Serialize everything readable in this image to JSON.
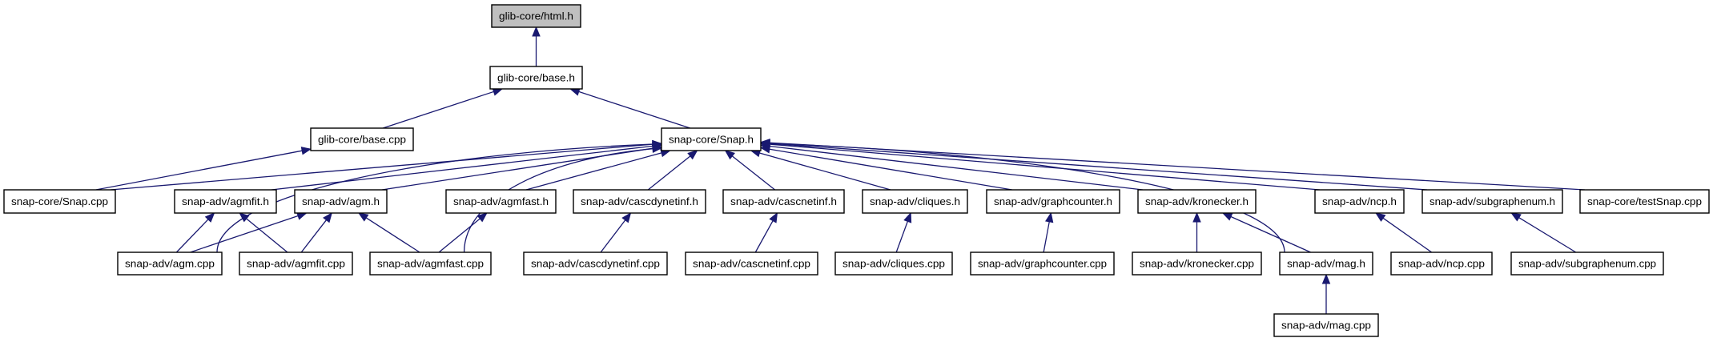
{
  "diagram": {
    "type": "include-dependency-graph",
    "colors": {
      "edge": "#191970",
      "root_fill": "#bfbfbf",
      "node_fill": "#ffffff",
      "border": "#000000"
    },
    "nodes": [
      {
        "id": "html_h",
        "label": "glib-core/html.h",
        "root": true
      },
      {
        "id": "base_h",
        "label": "glib-core/base.h"
      },
      {
        "id": "base_cpp",
        "label": "glib-core/base.cpp"
      },
      {
        "id": "snap_h",
        "label": "snap-core/Snap.h"
      },
      {
        "id": "snap_cpp",
        "label": "snap-core/Snap.cpp"
      },
      {
        "id": "agmfit_h",
        "label": "snap-adv/agmfit.h"
      },
      {
        "id": "agm_h",
        "label": "snap-adv/agm.h"
      },
      {
        "id": "agmfast_h",
        "label": "snap-adv/agmfast.h"
      },
      {
        "id": "cascdynetinf_h",
        "label": "snap-adv/cascdynetinf.h"
      },
      {
        "id": "cascnetinf_h",
        "label": "snap-adv/cascnetinf.h"
      },
      {
        "id": "cliques_h",
        "label": "snap-adv/cliques.h"
      },
      {
        "id": "graphcounter_h",
        "label": "snap-adv/graphcounter.h"
      },
      {
        "id": "kronecker_h",
        "label": "snap-adv/kronecker.h"
      },
      {
        "id": "ncp_h",
        "label": "snap-adv/ncp.h"
      },
      {
        "id": "subgraphenum_h",
        "label": "snap-adv/subgraphenum.h"
      },
      {
        "id": "testsnap_cpp",
        "label": "snap-core/testSnap.cpp"
      },
      {
        "id": "agm_cpp",
        "label": "snap-adv/agm.cpp"
      },
      {
        "id": "agmfit_cpp",
        "label": "snap-adv/agmfit.cpp"
      },
      {
        "id": "agmfast_cpp",
        "label": "snap-adv/agmfast.cpp"
      },
      {
        "id": "cascdynetinf_cpp",
        "label": "snap-adv/cascdynetinf.cpp"
      },
      {
        "id": "cascnetinf_cpp",
        "label": "snap-adv/cascnetinf.cpp"
      },
      {
        "id": "cliques_cpp",
        "label": "snap-adv/cliques.cpp"
      },
      {
        "id": "graphcounter_cpp",
        "label": "snap-adv/graphcounter.cpp"
      },
      {
        "id": "kronecker_cpp",
        "label": "snap-adv/kronecker.cpp"
      },
      {
        "id": "mag_h",
        "label": "snap-adv/mag.h"
      },
      {
        "id": "ncp_cpp",
        "label": "snap-adv/ncp.cpp"
      },
      {
        "id": "subgraphenum_cpp",
        "label": "snap-adv/subgraphenum.cpp"
      },
      {
        "id": "mag_cpp",
        "label": "snap-adv/mag.cpp"
      }
    ],
    "edges": [
      {
        "from": "base_h",
        "to": "html_h"
      },
      {
        "from": "base_cpp",
        "to": "base_h"
      },
      {
        "from": "snap_h",
        "to": "base_h"
      },
      {
        "from": "snap_cpp",
        "to": "base_cpp"
      },
      {
        "from": "snap_cpp",
        "to": "snap_h"
      },
      {
        "from": "agmfit_h",
        "to": "snap_h"
      },
      {
        "from": "agm_h",
        "to": "snap_h"
      },
      {
        "from": "agmfast_h",
        "to": "snap_h"
      },
      {
        "from": "cascdynetinf_h",
        "to": "snap_h"
      },
      {
        "from": "cascnetinf_h",
        "to": "snap_h"
      },
      {
        "from": "cliques_h",
        "to": "snap_h"
      },
      {
        "from": "graphcounter_h",
        "to": "snap_h"
      },
      {
        "from": "kronecker_h",
        "to": "snap_h"
      },
      {
        "from": "ncp_h",
        "to": "snap_h"
      },
      {
        "from": "subgraphenum_h",
        "to": "snap_h"
      },
      {
        "from": "testsnap_cpp",
        "to": "snap_h"
      },
      {
        "from": "agm_cpp",
        "to": "snap_h",
        "curved": true
      },
      {
        "from": "agmfast_cpp",
        "to": "snap_h",
        "curved": true
      },
      {
        "from": "mag_h",
        "to": "snap_h",
        "curved": true
      },
      {
        "from": "agm_cpp",
        "to": "agmfit_h"
      },
      {
        "from": "agm_cpp",
        "to": "agm_h"
      },
      {
        "from": "agmfit_cpp",
        "to": "agmfit_h"
      },
      {
        "from": "agmfit_cpp",
        "to": "agm_h"
      },
      {
        "from": "agmfast_cpp",
        "to": "agm_h"
      },
      {
        "from": "agmfast_cpp",
        "to": "agmfast_h"
      },
      {
        "from": "cascdynetinf_cpp",
        "to": "cascdynetinf_h"
      },
      {
        "from": "cascnetinf_cpp",
        "to": "cascnetinf_h"
      },
      {
        "from": "cliques_cpp",
        "to": "cliques_h"
      },
      {
        "from": "graphcounter_cpp",
        "to": "graphcounter_h"
      },
      {
        "from": "kronecker_cpp",
        "to": "kronecker_h"
      },
      {
        "from": "mag_h",
        "to": "kronecker_h"
      },
      {
        "from": "ncp_cpp",
        "to": "ncp_h"
      },
      {
        "from": "subgraphenum_cpp",
        "to": "subgraphenum_h"
      },
      {
        "from": "mag_cpp",
        "to": "mag_h"
      }
    ]
  }
}
